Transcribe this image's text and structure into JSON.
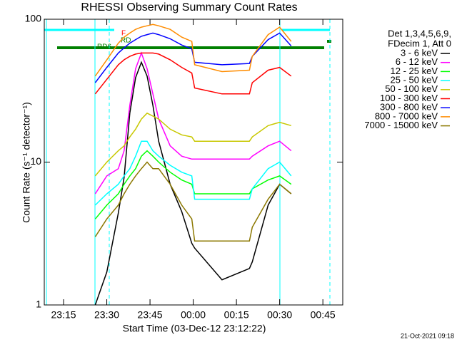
{
  "chart_data": {
    "type": "line",
    "title": "RHESSI Observing Summary Count Rates",
    "xlabel": "Start Time (03-Dec-12 23:12:22)",
    "ylabel": "Count Rate (s⁻¹ detector⁻¹)",
    "legend_header": [
      "Det 1,3,4,5,6,9,",
      "FDecim 1, Att 0"
    ],
    "footer": "21-Oct-2021 09:18",
    "annotations": [
      {
        "text": "F"
      },
      {
        "text": "RD"
      },
      {
        "text": "RD6"
      }
    ],
    "log_y": true,
    "xlim": [
      8.3,
      111.9
    ],
    "xticks": [
      {
        "value": 15,
        "label": "23:15"
      },
      {
        "value": 30,
        "label": "23:30"
      },
      {
        "value": 45,
        "label": "23:45"
      },
      {
        "value": 60,
        "label": "00:00"
      },
      {
        "value": 75,
        "label": "00:15"
      },
      {
        "value": 90,
        "label": "00:30"
      },
      {
        "value": 105,
        "label": "00:45"
      }
    ],
    "ylim": [
      1,
      100
    ],
    "yticks": [
      1,
      10,
      100
    ],
    "x": [
      26,
      30,
      34,
      36,
      38,
      40,
      42,
      44,
      46,
      48,
      52,
      56,
      59.5,
      60.5,
      70,
      79.5,
      80.5,
      86,
      90,
      94
    ],
    "series": [
      {
        "name": "3 - 6 keV",
        "color": "#000000",
        "values": [
          1,
          1.7,
          4.4,
          7.8,
          22,
          39,
          50,
          40,
          25,
          14,
          7,
          4.5,
          2.7,
          2.5,
          1.5,
          1.8,
          2,
          5,
          7,
          6
        ]
      },
      {
        "name": "6 - 12 keV",
        "color": "#ff00ff",
        "values": [
          6,
          8,
          9,
          12,
          25,
          45,
          58,
          45,
          30,
          20,
          13,
          11,
          10.5,
          10.5,
          10.5,
          10.5,
          11,
          13,
          14,
          12
        ]
      },
      {
        "name": "12 - 25 keV",
        "color": "#00ff00",
        "values": [
          4,
          5,
          6,
          7,
          8,
          9,
          11,
          12,
          11,
          10,
          8.5,
          7.5,
          7,
          6,
          6,
          6,
          6.5,
          7.5,
          8,
          7
        ]
      },
      {
        "name": "25 - 50 keV",
        "color": "#00ffff",
        "values": [
          5,
          6,
          7,
          8,
          9,
          11,
          14,
          14,
          12,
          11,
          9.5,
          8.5,
          8,
          5.5,
          5.5,
          5.5,
          6.5,
          9,
          10,
          8
        ]
      },
      {
        "name": "50 - 100 keV",
        "color": "#c8c800",
        "values": [
          8,
          10,
          12,
          13,
          15,
          17,
          20,
          22,
          21,
          20,
          17,
          15.5,
          15,
          14,
          14,
          14,
          15,
          18,
          19,
          18
        ]
      },
      {
        "name": "100 - 300 keV",
        "color": "#ff0000",
        "values": [
          30,
          38,
          48,
          52,
          55,
          57,
          58,
          58,
          58,
          57,
          52,
          46,
          42,
          33,
          30,
          30,
          36,
          44,
          46,
          40
        ]
      },
      {
        "name": "300 - 800 keV",
        "color": "#0000ff",
        "values": [
          36,
          46,
          58,
          63,
          68,
          72,
          76,
          78,
          80,
          78,
          73,
          66,
          62,
          50,
          48,
          49,
          55,
          72,
          80,
          65
        ]
      },
      {
        "name": "800 - 7000 keV",
        "color": "#ff8c00",
        "values": [
          40,
          52,
          68,
          75,
          80,
          85,
          88,
          90,
          92,
          90,
          85,
          75,
          70,
          48,
          43,
          44,
          55,
          78,
          88,
          70
        ]
      },
      {
        "name": "7000 - 15000 keV",
        "color": "#8c7800",
        "values": [
          3,
          4,
          5,
          6,
          7,
          8,
          9,
          10,
          9,
          9,
          7,
          5,
          4,
          2.8,
          2.8,
          2.8,
          3.5,
          5.5,
          7,
          6
        ]
      }
    ]
  }
}
